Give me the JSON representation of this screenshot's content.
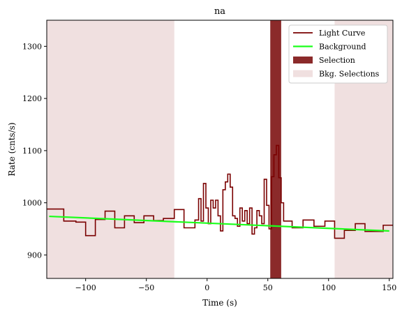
{
  "chart_data": {
    "type": "line",
    "title": "na",
    "xlabel": "Time (s)",
    "ylabel": "Rate (cnts/s)",
    "xlim": [
      -132,
      153
    ],
    "ylim": [
      855,
      1350
    ],
    "xticks": [
      -100,
      -50,
      0,
      50,
      100,
      150
    ],
    "yticks": [
      900,
      1000,
      1100,
      1200,
      1300
    ],
    "xtick_labels": [
      "−100",
      "−50",
      "0",
      "50",
      "100",
      "150"
    ],
    "ytick_labels": [
      "900",
      "1000",
      "1100",
      "1200",
      "1300"
    ],
    "grid": false,
    "legend_placement": "top-right",
    "legend": [
      "Light Curve",
      "Background",
      "Selection",
      "Bkg. Selections"
    ],
    "colors": {
      "light_curve": "#7a0000",
      "background": "#1aff1a",
      "selection": "#8b2a2a",
      "bkg_selection": "#f0e0e0"
    },
    "bkg_selections": [
      [
        -132,
        -27
      ],
      [
        105,
        153
      ]
    ],
    "selection": [
      52,
      61
    ],
    "background_line": {
      "x": [
        -130,
        150
      ],
      "y": [
        974,
        946
      ]
    },
    "light_curve": {
      "x": [
        -132,
        -118,
        -108,
        -100,
        -92,
        -84,
        -76,
        -68,
        -60,
        -52,
        -44,
        -36,
        -27,
        -19,
        -10,
        -7,
        -5,
        -3,
        -1,
        1,
        3,
        5,
        7,
        9,
        11,
        13,
        15,
        17,
        19,
        21,
        23,
        25,
        27,
        29,
        31,
        33,
        35,
        37,
        39,
        41,
        43,
        45,
        47,
        49,
        51,
        53,
        55,
        57,
        59,
        61,
        63,
        70,
        79,
        88,
        97,
        105,
        113,
        122,
        130,
        138,
        145,
        153
      ],
      "y": [
        988,
        965,
        963,
        937,
        968,
        984,
        952,
        975,
        962,
        975,
        966,
        970,
        987,
        952,
        967,
        1008,
        965,
        1037,
        990,
        960,
        1005,
        990,
        1005,
        975,
        946,
        1025,
        1040,
        1055,
        1030,
        975,
        970,
        955,
        990,
        965,
        985,
        960,
        990,
        940,
        952,
        985,
        975,
        960,
        1045,
        995,
        950,
        1050,
        1092,
        1110,
        1048,
        1000,
        965,
        952,
        967,
        955,
        965,
        932,
        947,
        960,
        945,
        945,
        957,
        957
      ]
    }
  }
}
